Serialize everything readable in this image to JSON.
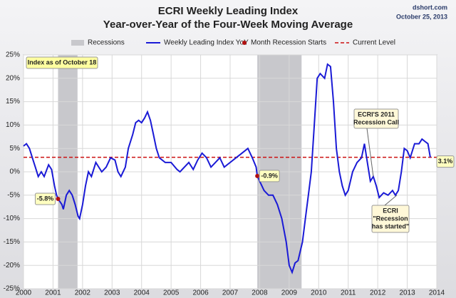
{
  "chart_data": {
    "type": "line",
    "title": "ECRI Weekly Leading Index",
    "subtitle": "Year-over-Year of the Four-Week Moving Average",
    "source": "dshort.com",
    "date": "October 25, 2013",
    "xlim": [
      2000,
      2014
    ],
    "xticks": [
      2000,
      2001,
      2002,
      2003,
      2004,
      2005,
      2006,
      2007,
      2008,
      2009,
      2010,
      2011,
      2012,
      2013,
      2014
    ],
    "ylim": [
      -25,
      25
    ],
    "yticks": [
      {
        "value": -25,
        "label": "-25%"
      },
      {
        "value": -20,
        "label": "-20%"
      },
      {
        "value": -15,
        "label": "-15%"
      },
      {
        "value": -10,
        "label": "-10%"
      },
      {
        "value": -5,
        "label": "-5%"
      },
      {
        "value": 0,
        "label": "0%"
      },
      {
        "value": 5,
        "label": "5%"
      },
      {
        "value": 10,
        "label": "10%"
      },
      {
        "value": 15,
        "label": "15%"
      },
      {
        "value": 20,
        "label": "20%"
      },
      {
        "value": 25,
        "label": "25%"
      }
    ],
    "grid": true,
    "legend": "top",
    "recessions": {
      "name": "Recessions",
      "color": "#c8c8cc",
      "spans": [
        [
          2001.17,
          2001.83
        ],
        [
          2007.92,
          2009.42
        ]
      ]
    },
    "series": [
      {
        "name": "Weekly Leading Index YoY",
        "color": "#1a1ad6",
        "x": [
          2000.0,
          2000.1,
          2000.2,
          2000.3,
          2000.4,
          2000.5,
          2000.6,
          2000.7,
          2000.85,
          2000.95,
          2001.05,
          2001.12,
          2001.17,
          2001.3,
          2001.35,
          2001.45,
          2001.55,
          2001.65,
          2001.75,
          2001.85,
          2001.9,
          2002.0,
          2002.1,
          2002.2,
          2002.3,
          2002.45,
          2002.55,
          2002.65,
          2002.8,
          2002.95,
          2003.1,
          2003.2,
          2003.3,
          2003.45,
          2003.55,
          2003.7,
          2003.8,
          2003.9,
          2004.0,
          2004.1,
          2004.2,
          2004.3,
          2004.4,
          2004.5,
          2004.6,
          2004.8,
          2005.0,
          2005.2,
          2005.3,
          2005.45,
          2005.6,
          2005.75,
          2005.9,
          2006.05,
          2006.2,
          2006.35,
          2006.5,
          2006.65,
          2006.8,
          2007.0,
          2007.2,
          2007.4,
          2007.6,
          2007.75,
          2007.88,
          2007.92,
          2008.0,
          2008.15,
          2008.3,
          2008.45,
          2008.6,
          2008.75,
          2008.9,
          2009.0,
          2009.1,
          2009.2,
          2009.3,
          2009.45,
          2009.55,
          2009.65,
          2009.75,
          2009.85,
          2009.95,
          2010.05,
          2010.2,
          2010.3,
          2010.4,
          2010.5,
          2010.6,
          2010.7,
          2010.8,
          2010.9,
          2011.0,
          2011.15,
          2011.3,
          2011.45,
          2011.55,
          2011.65,
          2011.75,
          2011.85,
          2011.95,
          2012.05,
          2012.2,
          2012.35,
          2012.5,
          2012.6,
          2012.7,
          2012.8,
          2012.9,
          2013.0,
          2013.1,
          2013.25,
          2013.4,
          2013.5,
          2013.6,
          2013.7,
          2013.78
        ],
        "values": [
          5.5,
          6,
          5,
          3,
          1,
          -1,
          0,
          -1,
          1.5,
          0.5,
          -3,
          -5,
          -5.8,
          -7,
          -8,
          -5,
          -4,
          -5,
          -7,
          -9.5,
          -10,
          -7,
          -3,
          0,
          -1,
          2,
          1,
          0,
          1,
          3,
          2.5,
          0,
          -1,
          1,
          5,
          8,
          10.5,
          11,
          10.5,
          11.5,
          12.8,
          11,
          8,
          5,
          3,
          2,
          2,
          0.5,
          0,
          1,
          2,
          0.5,
          2.5,
          4,
          3,
          1,
          2,
          3,
          1,
          2,
          3,
          4,
          5,
          3,
          1,
          -0.9,
          -2,
          -4,
          -5,
          -5,
          -7,
          -10,
          -15,
          -20,
          -21.5,
          -19.5,
          -19,
          -15,
          -10,
          -5,
          0,
          10,
          20,
          21,
          20,
          23,
          22.5,
          15,
          5,
          0,
          -3,
          -5,
          -4,
          0,
          2,
          3,
          6,
          2,
          -2,
          -1,
          -3,
          -5.5,
          -4.5,
          -5,
          -4,
          -5,
          -4,
          0,
          5,
          4.5,
          3,
          6,
          6,
          7,
          6.5,
          6,
          3.1
        ]
      }
    ],
    "recession_starts": {
      "name": "Month Recession Starts",
      "color": "#b01010",
      "x": [
        2001.17,
        2007.92
      ],
      "values": [
        -5.8,
        -0.9
      ],
      "value_labels": [
        "-5.8%",
        "-0.9%"
      ]
    },
    "current_level": {
      "name": "Current Level",
      "color": "#cc1111",
      "value": 3.1,
      "value_label": "3.1%"
    },
    "annotations": [
      {
        "text": [
          "Index as of October 18"
        ]
      },
      {
        "text": [
          "ECRI'S 2011",
          "Recession Call"
        ]
      },
      {
        "text": [
          "ECRI",
          "\"Recession",
          "has started\""
        ]
      }
    ]
  }
}
